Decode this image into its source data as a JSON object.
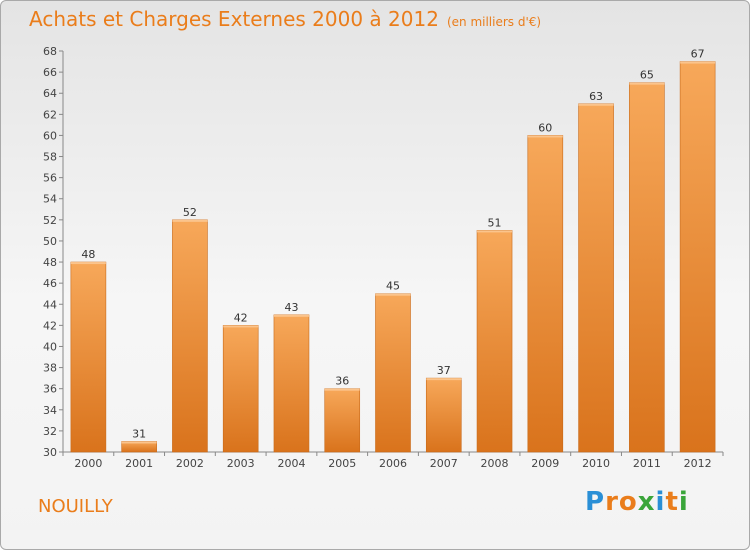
{
  "title": "Achats et Charges Externes 2000 à 2012",
  "unit": "(en milliers d'€)",
  "place": "NOUILLY",
  "logo": {
    "letters": [
      {
        "ch": "P",
        "color": "#2a8fd6"
      },
      {
        "ch": "r",
        "color": "#ea7d1b"
      },
      {
        "ch": "o",
        "color": "#ea7d1b"
      },
      {
        "ch": "x",
        "color": "#3aa53a"
      },
      {
        "ch": "i",
        "color": "#2a8fd6"
      },
      {
        "ch": "t",
        "color": "#ea7d1b"
      },
      {
        "ch": "i",
        "color": "#3aa53a"
      }
    ]
  },
  "chart_data": {
    "type": "bar",
    "categories": [
      "2000",
      "2001",
      "2002",
      "2003",
      "2004",
      "2005",
      "2006",
      "2007",
      "2008",
      "2009",
      "2010",
      "2011",
      "2012"
    ],
    "values": [
      48,
      31,
      52,
      42,
      43,
      36,
      45,
      37,
      51,
      60,
      63,
      65,
      67
    ],
    "ylim": [
      30,
      68
    ],
    "yticks": [
      30,
      32,
      34,
      36,
      38,
      40,
      42,
      44,
      46,
      48,
      50,
      52,
      54,
      56,
      58,
      60,
      62,
      64,
      66,
      68
    ],
    "grid": false,
    "bar_color_top": "#f7a85a",
    "bar_color_bottom": "#d9731c",
    "title": "Achats et Charges Externes 2000 à 2012",
    "xlabel": "",
    "ylabel": ""
  }
}
